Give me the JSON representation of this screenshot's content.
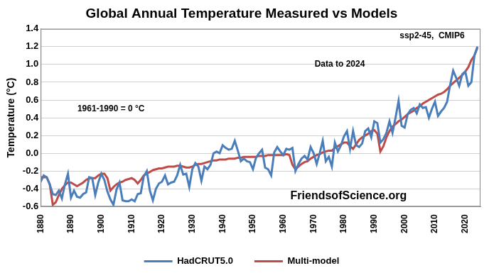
{
  "chart_data": {
    "type": "line",
    "title": "Global Annual Temperature Measured vs Models",
    "y_label": "Temperature (°C)",
    "annotations": [
      "ssp2-45,  CMIP6",
      "Data to 2024",
      "1961-1990 = 0 °C",
      "FriendsofScience.org"
    ],
    "x": [
      1880,
      1881,
      1882,
      1883,
      1884,
      1885,
      1886,
      1887,
      1888,
      1889,
      1890,
      1891,
      1892,
      1893,
      1894,
      1895,
      1896,
      1897,
      1898,
      1899,
      1900,
      1901,
      1902,
      1903,
      1904,
      1905,
      1906,
      1907,
      1908,
      1909,
      1910,
      1911,
      1912,
      1913,
      1914,
      1915,
      1916,
      1917,
      1918,
      1919,
      1920,
      1921,
      1922,
      1923,
      1924,
      1925,
      1926,
      1927,
      1928,
      1929,
      1930,
      1931,
      1932,
      1933,
      1934,
      1935,
      1936,
      1937,
      1938,
      1939,
      1940,
      1941,
      1942,
      1943,
      1944,
      1945,
      1946,
      1947,
      1948,
      1949,
      1950,
      1951,
      1952,
      1953,
      1954,
      1955,
      1956,
      1957,
      1958,
      1959,
      1960,
      1961,
      1962,
      1963,
      1964,
      1965,
      1966,
      1967,
      1968,
      1969,
      1970,
      1971,
      1972,
      1973,
      1974,
      1975,
      1976,
      1977,
      1978,
      1979,
      1980,
      1981,
      1982,
      1983,
      1984,
      1985,
      1986,
      1987,
      1988,
      1989,
      1990,
      1991,
      1992,
      1993,
      1994,
      1995,
      1996,
      1997,
      1998,
      1999,
      2000,
      2001,
      2002,
      2003,
      2004,
      2005,
      2006,
      2007,
      2008,
      2009,
      2010,
      2011,
      2012,
      2013,
      2014,
      2015,
      2016,
      2017,
      2018,
      2019,
      2020,
      2021,
      2022,
      2023,
      2024
    ],
    "series": [
      {
        "name": "HadCRUT5.0",
        "color": "#4a7ebb",
        "values": [
          -0.32,
          -0.25,
          -0.27,
          -0.35,
          -0.46,
          -0.47,
          -0.42,
          -0.51,
          -0.35,
          -0.23,
          -0.5,
          -0.42,
          -0.49,
          -0.5,
          -0.46,
          -0.44,
          -0.27,
          -0.28,
          -0.47,
          -0.33,
          -0.23,
          -0.3,
          -0.43,
          -0.52,
          -0.58,
          -0.41,
          -0.33,
          -0.53,
          -0.54,
          -0.54,
          -0.52,
          -0.54,
          -0.46,
          -0.45,
          -0.26,
          -0.2,
          -0.42,
          -0.53,
          -0.4,
          -0.34,
          -0.32,
          -0.25,
          -0.35,
          -0.33,
          -0.32,
          -0.25,
          -0.13,
          -0.24,
          -0.23,
          -0.38,
          -0.18,
          -0.11,
          -0.15,
          -0.31,
          -0.15,
          -0.18,
          -0.13,
          0.0,
          0.02,
          0.0,
          0.09,
          0.06,
          0.04,
          0.05,
          0.14,
          0.03,
          -0.09,
          -0.06,
          -0.09,
          -0.1,
          -0.18,
          -0.05,
          0.0,
          0.04,
          -0.16,
          -0.18,
          -0.25,
          0.01,
          0.07,
          0.02,
          -0.02,
          0.05,
          0.04,
          0.06,
          -0.2,
          -0.12,
          -0.06,
          -0.03,
          -0.07,
          0.07,
          0.0,
          -0.12,
          0.0,
          0.14,
          -0.09,
          -0.04,
          -0.15,
          0.12,
          0.02,
          0.09,
          0.19,
          0.25,
          0.05,
          0.25,
          0.09,
          0.07,
          0.11,
          0.25,
          0.28,
          0.18,
          0.36,
          0.34,
          0.12,
          0.16,
          0.23,
          0.36,
          0.23,
          0.4,
          0.59,
          0.31,
          0.29,
          0.44,
          0.49,
          0.51,
          0.45,
          0.55,
          0.51,
          0.52,
          0.4,
          0.5,
          0.58,
          0.42,
          0.47,
          0.51,
          0.58,
          0.77,
          0.93,
          0.85,
          0.76,
          0.89,
          0.92,
          0.76,
          0.8,
          1.1,
          1.2
        ]
      },
      {
        "name": "Multi-model",
        "color": "#be4b48",
        "values": [
          -0.27,
          -0.27,
          -0.27,
          -0.35,
          -0.58,
          -0.55,
          -0.47,
          -0.4,
          -0.36,
          -0.33,
          -0.33,
          -0.35,
          -0.37,
          -0.35,
          -0.33,
          -0.3,
          -0.28,
          -0.28,
          -0.28,
          -0.25,
          -0.23,
          -0.23,
          -0.28,
          -0.42,
          -0.38,
          -0.35,
          -0.33,
          -0.32,
          -0.3,
          -0.29,
          -0.28,
          -0.3,
          -0.34,
          -0.3,
          -0.25,
          -0.23,
          -0.21,
          -0.19,
          -0.18,
          -0.17,
          -0.17,
          -0.16,
          -0.15,
          -0.15,
          -0.15,
          -0.14,
          -0.14,
          -0.15,
          -0.16,
          -0.16,
          -0.15,
          -0.13,
          -0.12,
          -0.12,
          -0.11,
          -0.1,
          -0.09,
          -0.08,
          -0.08,
          -0.07,
          -0.07,
          -0.07,
          -0.06,
          -0.06,
          -0.06,
          -0.05,
          -0.05,
          -0.04,
          -0.04,
          -0.04,
          -0.04,
          -0.04,
          -0.03,
          -0.03,
          -0.03,
          -0.02,
          -0.02,
          -0.02,
          -0.02,
          -0.02,
          -0.02,
          -0.01,
          -0.02,
          -0.13,
          -0.18,
          -0.15,
          -0.12,
          -0.1,
          -0.09,
          -0.06,
          -0.04,
          -0.02,
          -0.01,
          0.01,
          0.02,
          0.03,
          0.03,
          0.06,
          0.08,
          0.1,
          0.12,
          0.12,
          0.08,
          0.05,
          0.1,
          0.15,
          0.18,
          0.2,
          0.22,
          0.25,
          0.26,
          0.22,
          0.02,
          0.08,
          0.18,
          0.25,
          0.3,
          0.33,
          0.36,
          0.38,
          0.41,
          0.44,
          0.46,
          0.48,
          0.51,
          0.53,
          0.56,
          0.58,
          0.6,
          0.62,
          0.64,
          0.66,
          0.67,
          0.69,
          0.72,
          0.76,
          0.79,
          0.82,
          0.85,
          0.88,
          0.92,
          0.97,
          1.05,
          1.1,
          1.19
        ]
      }
    ],
    "xlim": [
      1880,
      2025
    ],
    "xticks": [
      1880,
      1890,
      1900,
      1910,
      1920,
      1930,
      1940,
      1950,
      1960,
      1970,
      1980,
      1990,
      2000,
      2010,
      2020
    ],
    "ylim": [
      -0.6,
      1.4
    ],
    "yticks": [
      -0.6,
      -0.4,
      -0.2,
      {
        "value": 0,
        "label": "0.0"
      },
      0.2,
      0.4,
      0.6,
      0.8,
      {
        "value": 1,
        "label": "1.0"
      },
      1.2,
      1.4
    ],
    "grid": true,
    "legend": "bottom"
  }
}
